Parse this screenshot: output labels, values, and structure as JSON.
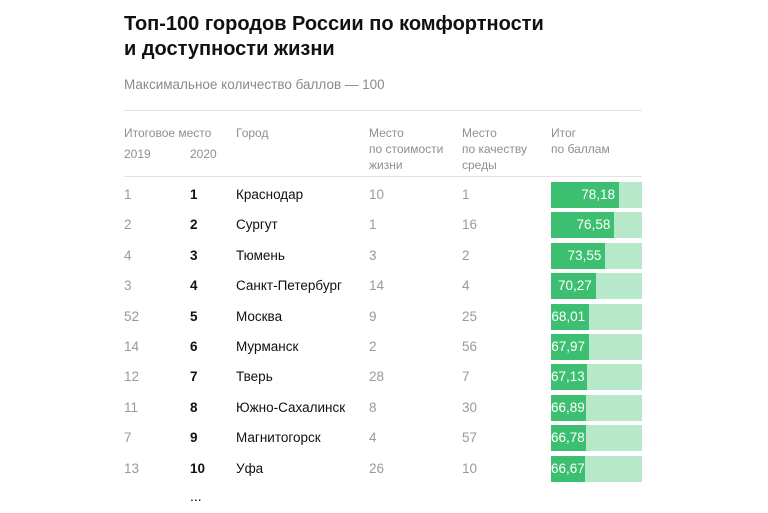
{
  "title_lines": [
    "Топ-100 городов России по комфортности",
    "и доступности жизни"
  ],
  "subtitle": "Максимальное количество баллов — 100",
  "headers": {
    "final_place": "Итоговое место",
    "year_2019": "2019",
    "year_2020": "2020",
    "city": "Город",
    "cost_lines": [
      "Место",
      "по стоимости",
      "жизни"
    ],
    "env_lines": [
      "Место",
      "по качеству",
      "среды"
    ],
    "score_lines": [
      "Итог",
      "по баллам"
    ]
  },
  "ellipsis": "...",
  "colors": {
    "bar_fill": "#3dbf72",
    "bar_track": "#b6e8c9",
    "text_muted": "#9a9a9a"
  },
  "chart_data": {
    "type": "table",
    "title": "Топ-100 городов России по комфортности и доступности жизни",
    "subtitle": "Максимальное количество баллов — 100",
    "score_max": 100,
    "columns": [
      "2019",
      "2020",
      "Город",
      "Место по стоимости жизни",
      "Место по качеству среды",
      "Итог по баллам"
    ],
    "rows": [
      {
        "rank_2019": "1",
        "rank_2020": "1",
        "city": "Краснодар",
        "cost_rank": "10",
        "env_rank": "1",
        "score": 78.18,
        "score_label": "78,18"
      },
      {
        "rank_2019": "2",
        "rank_2020": "2",
        "city": "Сургут",
        "cost_rank": "1",
        "env_rank": "16",
        "score": 76.58,
        "score_label": "76,58"
      },
      {
        "rank_2019": "4",
        "rank_2020": "3",
        "city": "Тюмень",
        "cost_rank": "3",
        "env_rank": "2",
        "score": 73.55,
        "score_label": "73,55"
      },
      {
        "rank_2019": "3",
        "rank_2020": "4",
        "city": "Санкт-Петербург",
        "cost_rank": "14",
        "env_rank": "4",
        "score": 70.27,
        "score_label": "70,27"
      },
      {
        "rank_2019": "52",
        "rank_2020": "5",
        "city": "Москва",
        "cost_rank": "9",
        "env_rank": "25",
        "score": 68.01,
        "score_label": "68,01"
      },
      {
        "rank_2019": "14",
        "rank_2020": "6",
        "city": "Мурманск",
        "cost_rank": "2",
        "env_rank": "56",
        "score": 67.97,
        "score_label": "67,97"
      },
      {
        "rank_2019": "12",
        "rank_2020": "7",
        "city": "Тверь",
        "cost_rank": "28",
        "env_rank": "7",
        "score": 67.13,
        "score_label": "67,13"
      },
      {
        "rank_2019": "11",
        "rank_2020": "8",
        "city": "Южно-Сахалинск",
        "cost_rank": "8",
        "env_rank": "30",
        "score": 66.89,
        "score_label": "66,89"
      },
      {
        "rank_2019": "7",
        "rank_2020": "9",
        "city": "Магнитогорск",
        "cost_rank": "4",
        "env_rank": "57",
        "score": 66.78,
        "score_label": "66,78"
      },
      {
        "rank_2019": "13",
        "rank_2020": "10",
        "city": "Уфа",
        "cost_rank": "26",
        "env_rank": "10",
        "score": 66.67,
        "score_label": "66,67"
      }
    ]
  }
}
